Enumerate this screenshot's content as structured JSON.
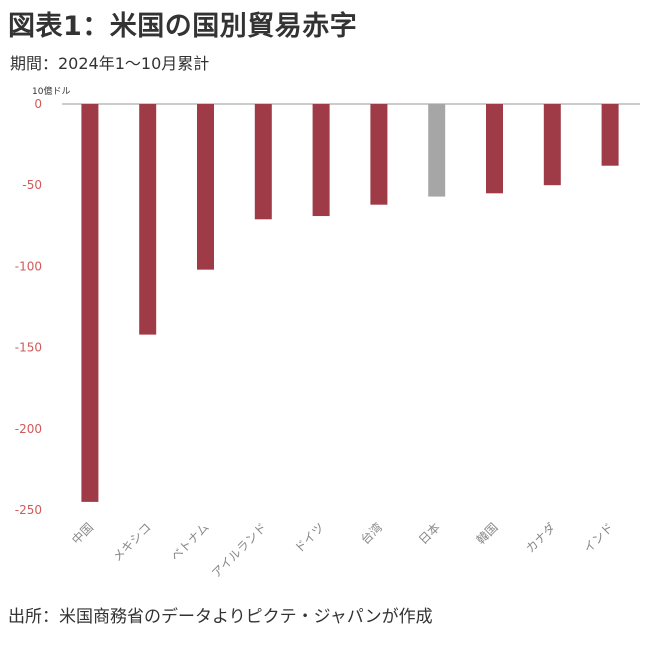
{
  "title": "図表1：米国の国別貿易赤字",
  "subtitle": "期間：2024年1～10月累計",
  "source": "出所：米国商務省のデータよりピクテ・ジャパンが作成",
  "unit_label": "10億ドル",
  "colors": {
    "bar": "#9e3b46",
    "highlight": "#a6a6a6",
    "tick": "#d15a5a",
    "axis": "#cccccc"
  },
  "chart_data": {
    "type": "bar",
    "title": "図表1：米国の国別貿易赤字",
    "subtitle": "期間：2024年1～10月累計",
    "xlabel": "",
    "ylabel": "10億ドル",
    "ylim": [
      -250,
      0
    ],
    "yticks": [
      0,
      -50,
      -100,
      -150,
      -200,
      -250
    ],
    "categories": [
      "中国",
      "メキシコ",
      "ベトナム",
      "アイルランド",
      "ドイツ",
      "台湾",
      "日本",
      "韓国",
      "カナダ",
      "インド"
    ],
    "values": [
      -245,
      -142,
      -102,
      -71,
      -69,
      -62,
      -57,
      -55,
      -50,
      -38
    ],
    "highlight_category": "日本",
    "grid": false,
    "legend": "none"
  }
}
